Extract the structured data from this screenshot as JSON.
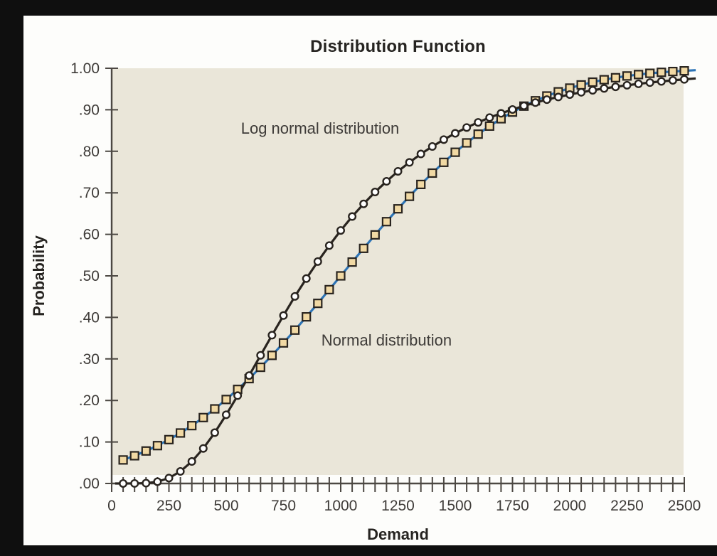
{
  "figure": {
    "background": "#0f0f0f",
    "card_background": "#fdfdfb"
  },
  "chart_data": {
    "type": "line",
    "title": "Distribution Function",
    "xlabel": "Demand",
    "ylabel": "Probability",
    "xlim": [
      0,
      2500
    ],
    "ylim": [
      0.0,
      1.0
    ],
    "grid": false,
    "legend_position": "inline-annotations",
    "plot_background": "#eae6d9",
    "axis_color": "#4c4843",
    "x_minor_tick_step": 50,
    "x_tick_values": [
      0,
      250,
      500,
      750,
      1000,
      1250,
      1500,
      1750,
      2000,
      2250,
      2500
    ],
    "x_tick_labels": [
      "0",
      "250",
      "500",
      "750",
      "1000",
      "1250",
      "1500",
      "1750",
      "2000",
      "2250",
      "2500"
    ],
    "y_tick_values": [
      1.0,
      0.9,
      0.8,
      0.7,
      0.6,
      0.5,
      0.4,
      0.3,
      0.2,
      0.1,
      0.0
    ],
    "y_tick_labels": [
      "1.00",
      ".90",
      ".80",
      ".70",
      ".60",
      ".50",
      ".40",
      ".30",
      ".20",
      ".10",
      ".00"
    ],
    "x": [
      50,
      100,
      150,
      200,
      250,
      300,
      350,
      400,
      450,
      500,
      550,
      600,
      650,
      700,
      750,
      800,
      850,
      900,
      950,
      1000,
      1050,
      1100,
      1150,
      1200,
      1250,
      1300,
      1350,
      1400,
      1450,
      1500,
      1550,
      1600,
      1650,
      1700,
      1750,
      1800,
      1850,
      1900,
      1950,
      2000,
      2050,
      2100,
      2150,
      2200,
      2250,
      2300,
      2350,
      2400,
      2450,
      2500
    ],
    "series": [
      {
        "name": "Log normal distribution",
        "marker": "circle",
        "marker_fill": "#ffffff",
        "marker_stroke": "#29241f",
        "line_color": "#29241f",
        "values": [
          0.0,
          0.0001,
          0.0008,
          0.0043,
          0.0131,
          0.0291,
          0.053,
          0.0844,
          0.1224,
          0.1655,
          0.2116,
          0.2598,
          0.3086,
          0.3572,
          0.4045,
          0.4506,
          0.4936,
          0.5345,
          0.573,
          0.6094,
          0.6429,
          0.6734,
          0.702,
          0.7277,
          0.7518,
          0.7733,
          0.7936,
          0.8116,
          0.8282,
          0.8433,
          0.8573,
          0.8697,
          0.8812,
          0.8914,
          0.9007,
          0.9095,
          0.9173,
          0.9245,
          0.9308,
          0.9367,
          0.9421,
          0.9469,
          0.9514,
          0.9553,
          0.9591,
          0.9625,
          0.9655,
          0.9683,
          0.9709,
          0.9732
        ]
      },
      {
        "name": "Normal distribution",
        "marker": "square",
        "marker_fill": "#f1d9a4",
        "marker_stroke": "#29241f",
        "line_color": "#2d74b6",
        "values": [
          0.0567,
          0.0668,
          0.0783,
          0.0912,
          0.1056,
          0.1216,
          0.1393,
          0.1587,
          0.1797,
          0.2023,
          0.2266,
          0.2525,
          0.2798,
          0.3085,
          0.3385,
          0.3694,
          0.4013,
          0.4338,
          0.4668,
          0.5,
          0.5332,
          0.5662,
          0.5987,
          0.6306,
          0.6615,
          0.6915,
          0.7202,
          0.7475,
          0.7734,
          0.7977,
          0.8203,
          0.8413,
          0.8607,
          0.8784,
          0.8944,
          0.9088,
          0.9217,
          0.9332,
          0.9433,
          0.9522,
          0.9599,
          0.9666,
          0.9724,
          0.9772,
          0.9814,
          0.9848,
          0.9878,
          0.9902,
          0.9922,
          0.9938
        ]
      }
    ],
    "annotations": [
      {
        "text": "Log normal distribution",
        "series": "lognormal",
        "x": 910,
        "y": 0.856
      },
      {
        "text": "Normal distribution",
        "series": "normal",
        "x": 1200,
        "y": 0.346
      }
    ]
  }
}
